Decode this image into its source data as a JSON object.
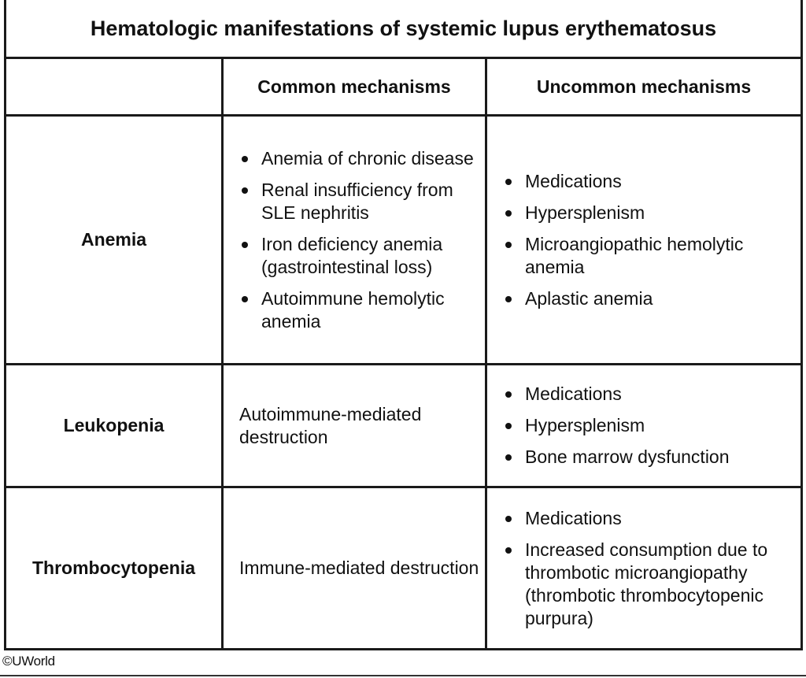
{
  "table": {
    "title": "Hematologic manifestations of systemic lupus erythematosus",
    "headers": {
      "corner": "",
      "common": "Common mechanisms",
      "uncommon": "Uncommon mechanisms"
    },
    "rows": [
      {
        "label": "Anemia",
        "common": [
          "Anemia of chronic disease",
          "Renal insufficiency from SLE nephritis",
          "Iron deficiency anemia (gastrointestinal loss)",
          "Autoimmune hemolytic anemia"
        ],
        "uncommon": [
          "Medications",
          "Hypersplenism",
          "Microangiopathic hemolytic anemia",
          "Aplastic anemia"
        ]
      },
      {
        "label": "Leukopenia",
        "common_text": "Autoimmune-mediated destruction",
        "uncommon": [
          "Medications",
          "Hypersplenism",
          "Bone marrow dysfunction"
        ]
      },
      {
        "label": "Thrombocytopenia",
        "common_text": "Immune-mediated destruction",
        "uncommon": [
          "Medications",
          "Increased consumption due to thrombotic microangiopathy (thrombotic thrombocytopenic purpura)"
        ]
      }
    ]
  },
  "footer": {
    "copyright": "©UWorld"
  }
}
